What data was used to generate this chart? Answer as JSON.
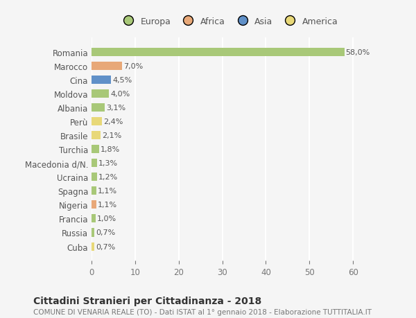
{
  "countries": [
    "Romania",
    "Marocco",
    "Cina",
    "Moldova",
    "Albania",
    "Perù",
    "Brasile",
    "Turchia",
    "Macedonia d/N.",
    "Ucraina",
    "Spagna",
    "Nigeria",
    "Francia",
    "Russia",
    "Cuba"
  ],
  "values": [
    58.0,
    7.0,
    4.5,
    4.0,
    3.1,
    2.4,
    2.1,
    1.8,
    1.3,
    1.2,
    1.1,
    1.1,
    1.0,
    0.7,
    0.7
  ],
  "labels": [
    "58,0%",
    "7,0%",
    "4,5%",
    "4,0%",
    "3,1%",
    "2,4%",
    "2,1%",
    "1,8%",
    "1,3%",
    "1,2%",
    "1,1%",
    "1,1%",
    "1,0%",
    "0,7%",
    "0,7%"
  ],
  "colors": [
    "#a8c878",
    "#e8a878",
    "#6090c8",
    "#a8c878",
    "#a8c878",
    "#e8d878",
    "#e8d878",
    "#a8c878",
    "#a8c878",
    "#a8c878",
    "#a8c878",
    "#e8a878",
    "#a8c878",
    "#a8c878",
    "#e8d878"
  ],
  "continent_colors": {
    "Europa": "#a8c878",
    "Africa": "#e8a878",
    "Asia": "#6090c8",
    "America": "#e8d878"
  },
  "xlim": [
    0,
    63
  ],
  "xticks": [
    0,
    10,
    20,
    30,
    40,
    50,
    60
  ],
  "title": "Cittadini Stranieri per Cittadinanza - 2018",
  "subtitle": "COMUNE DI VENARIA REALE (TO) - Dati ISTAT al 1° gennaio 2018 - Elaborazione TUTTITALIA.IT",
  "bg_color": "#f5f5f5",
  "grid_color": "#ffffff",
  "bar_height": 0.6
}
